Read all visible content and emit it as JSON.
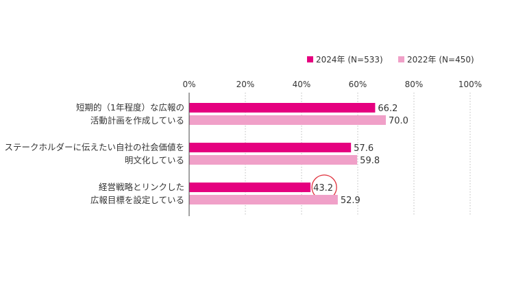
{
  "chart_data": {
    "type": "bar",
    "orientation": "horizontal",
    "categories": [
      [
        "短期的（1年程度）な広報の",
        "活動計画を作成している"
      ],
      [
        "ステークホルダーに伝えたい自社の社会価値を",
        "明文化している"
      ],
      [
        "経営戦略とリンクした",
        "広報目標を設定している"
      ]
    ],
    "series": [
      {
        "name": "2024年 (N=533)",
        "color": "#e5007f",
        "values": [
          66.2,
          57.6,
          43.2
        ],
        "labels": [
          "66.2",
          "57.6",
          "43.2"
        ]
      },
      {
        "name": "2022年 (N=450)",
        "color": "#f0a0c8",
        "values": [
          70.0,
          59.8,
          52.9
        ],
        "labels": [
          "70.0",
          "59.8",
          "52.9"
        ]
      }
    ],
    "xlim": [
      0,
      100
    ],
    "ticks": [
      0,
      20,
      40,
      60,
      80,
      100
    ],
    "tick_labels": [
      "0%",
      "20%",
      "40%",
      "60%",
      "80%",
      "100%"
    ],
    "grid": "dotted-vertical",
    "legend_position": "top-right",
    "highlight": {
      "series": 0,
      "category": 2,
      "style": "red-circle",
      "color": "#e0303c"
    }
  }
}
